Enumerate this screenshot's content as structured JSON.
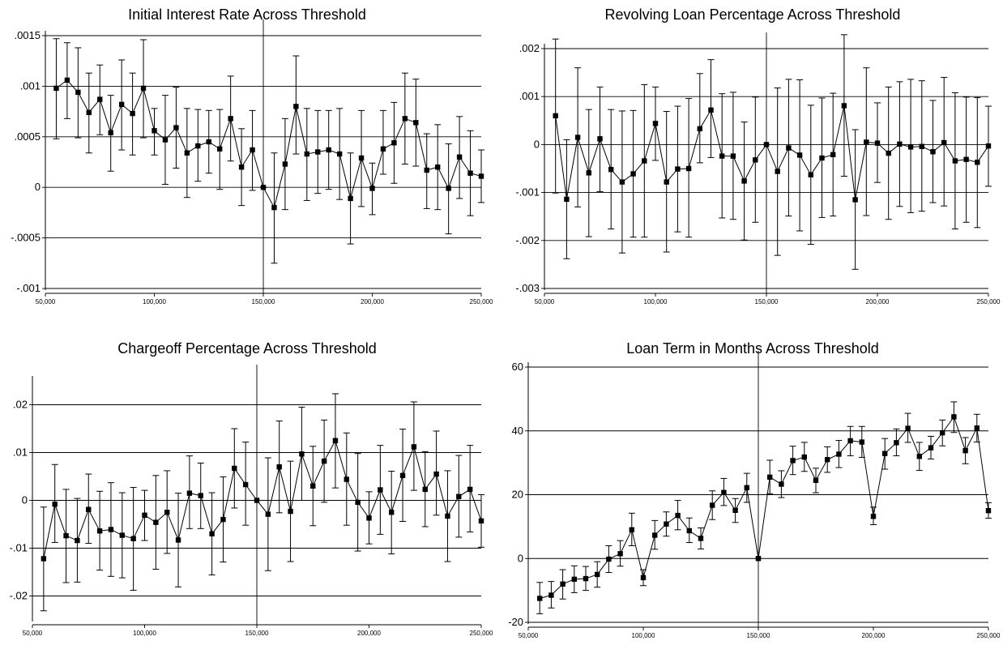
{
  "chart_data": [
    {
      "type": "scatter",
      "title": "Initial Interest Rate Across Threshold",
      "xlabel": "",
      "ylabel": "",
      "xlim": [
        50000,
        250000
      ],
      "ylim": [
        -0.001,
        0.0015
      ],
      "threshold": 150000,
      "yticks": [
        -0.001,
        -0.0005,
        0,
        0.0005,
        0.001,
        0.0015
      ],
      "ytick_labels": [
        "-.001",
        "-.0005",
        "0",
        ".0005",
        ".001",
        ".0015"
      ],
      "xticks": [
        50000,
        100000,
        150000,
        200000,
        250000
      ],
      "xtick_labels": [
        "50,000",
        "100,000",
        "150,000",
        "200,000",
        "250,000"
      ],
      "grid": "horizontal",
      "series": [
        {
          "x": [
            55000,
            60000,
            65000,
            70000,
            75000,
            80000,
            85000,
            90000,
            95000,
            100000,
            105000,
            110000,
            115000,
            120000,
            125000,
            130000,
            135000,
            140000,
            145000,
            150000,
            155000,
            160000,
            165000,
            170000,
            175000,
            180000,
            185000,
            190000,
            195000,
            200000,
            205000,
            210000,
            215000,
            220000,
            225000,
            230000,
            235000,
            240000,
            245000,
            250000
          ],
          "y": [
            0.00098,
            0.00106,
            0.00094,
            0.00074,
            0.00087,
            0.00054,
            0.00082,
            0.00073,
            0.00098,
            0.00056,
            0.00047,
            0.00059,
            0.00034,
            0.00041,
            0.00045,
            0.00038,
            0.00068,
            0.0002,
            0.00037,
            0,
            -0.0002,
            0.00023,
            0.0008,
            0.00033,
            0.00035,
            0.00037,
            0.00033,
            -0.00011,
            0.00029,
            -1e-05,
            0.00038,
            0.00044,
            0.00068,
            0.00064,
            0.00017,
            0.0002,
            -1e-05,
            0.0003,
            0.00014,
            0.00011
          ],
          "lo": [
            0.00048,
            0.00068,
            0.00049,
            0.00034,
            0.00052,
            0.00016,
            0.00037,
            0.00032,
            0.00049,
            0.00032,
            3e-05,
            0.00019,
            -0.0001,
            6e-05,
            0.00014,
            -2e-05,
            0.00026,
            -0.00018,
            -3e-05,
            0,
            -0.00075,
            -0.00022,
            0.00033,
            -0.00013,
            -6e-05,
            -2e-05,
            -0.00012,
            -0.00056,
            -0.00019,
            -0.00027,
            0.00013,
            4e-05,
            0.00023,
            0.00021,
            -0.00021,
            -0.00022,
            -0.00046,
            -0.00011,
            -0.00028,
            -0.00015
          ],
          "hi": [
            0.00147,
            0.00143,
            0.00138,
            0.00113,
            0.00121,
            0.00091,
            0.00126,
            0.00113,
            0.00146,
            0.00078,
            0.00091,
            0.00099,
            0.00078,
            0.00077,
            0.00076,
            0.00077,
            0.0011,
            0.00058,
            0.00076,
            0,
            0.00034,
            0.00068,
            0.0013,
            0.00078,
            0.00076,
            0.00076,
            0.00078,
            0.00034,
            0.00076,
            0.00024,
            0.00076,
            0.00084,
            0.00113,
            0.00107,
            0.00053,
            0.00062,
            0.00043,
            0.0007,
            0.00056,
            0.00037
          ]
        }
      ]
    },
    {
      "type": "scatter",
      "title": "Revolving Loan Percentage Across Threshold",
      "xlabel": "",
      "ylabel": "",
      "xlim": [
        50000,
        250000
      ],
      "ylim": [
        -0.003,
        0.002
      ],
      "threshold": 150000,
      "yticks": [
        -0.003,
        -0.002,
        -0.001,
        0,
        0.001,
        0.002
      ],
      "ytick_labels": [
        "-.003",
        "-.002",
        "-.001",
        "0",
        ".001",
        ".002"
      ],
      "xticks": [
        50000,
        100000,
        150000,
        200000,
        250000
      ],
      "xtick_labels": [
        "50,000",
        "100,000",
        "150,000",
        "200,000",
        "250,000"
      ],
      "grid": "horizontal",
      "series": [
        {
          "x": [
            55000,
            60000,
            65000,
            70000,
            75000,
            80000,
            85000,
            90000,
            95000,
            100000,
            105000,
            110000,
            115000,
            120000,
            125000,
            130000,
            135000,
            140000,
            145000,
            150000,
            155000,
            160000,
            165000,
            170000,
            175000,
            180000,
            185000,
            190000,
            195000,
            200000,
            205000,
            210000,
            215000,
            220000,
            225000,
            230000,
            235000,
            240000,
            245000,
            250000
          ],
          "y": [
            0.0006,
            -0.00114,
            0.00015,
            -0.00059,
            0.00012,
            -0.00052,
            -0.00078,
            -0.00061,
            -0.00034,
            0.00044,
            -0.00078,
            -0.00051,
            -0.0005,
            0.00033,
            0.00072,
            -0.00024,
            -0.00024,
            -0.00076,
            -0.00032,
            0,
            -0.00056,
            -7e-05,
            -0.00022,
            -0.00063,
            -0.00028,
            -0.00021,
            0.00081,
            -0.00115,
            5e-05,
            3e-05,
            -0.00018,
            1e-05,
            -5e-05,
            -4e-05,
            -0.00015,
            4e-05,
            -0.00034,
            -0.00031,
            -0.00037,
            -3e-05
          ],
          "lo": [
            -0.00101,
            -0.00238,
            -0.0013,
            -0.00192,
            -0.00098,
            -0.00176,
            -0.00226,
            -0.00193,
            -0.00193,
            -0.00033,
            -0.00224,
            -0.00182,
            -0.00193,
            -0.00038,
            -0.00027,
            -0.00153,
            -0.00156,
            -0.00199,
            -0.00162,
            0,
            -0.00231,
            -0.00149,
            -0.0018,
            -0.00208,
            -0.00152,
            -0.00149,
            -0.00066,
            -0.0026,
            -0.00148,
            -0.00079,
            -0.00156,
            -0.00129,
            -0.00142,
            -0.00139,
            -0.00121,
            -0.00128,
            -0.00176,
            -0.00162,
            -0.00173,
            -0.00087
          ],
          "hi": [
            0.0022,
            0.0001,
            0.0016,
            0.00073,
            0.0012,
            0.00073,
            0.0007,
            0.00071,
            0.00125,
            0.0012,
            0.00069,
            0.0008,
            0.00096,
            0.00148,
            0.00177,
            0.00106,
            0.00109,
            0.00047,
            0.00099,
            0,
            0.00118,
            0.00136,
            0.00135,
            0.00082,
            0.00097,
            0.00107,
            0.00229,
            0.00031,
            0.0016,
            0.00087,
            0.0012,
            0.00131,
            0.00136,
            0.00133,
            0.00092,
            0.0014,
            0.00108,
            0.00099,
            0.00098,
            0.0008
          ]
        }
      ]
    },
    {
      "type": "scatter",
      "title": "Chargeoff Percentage Across Threshold",
      "xlabel": "",
      "ylabel": "",
      "xlim": [
        50000,
        250000
      ],
      "ylim": [
        -0.025,
        0.025
      ],
      "threshold": 150000,
      "yticks": [
        -0.02,
        -0.01,
        0,
        0.01,
        0.02
      ],
      "ytick_labels": [
        "-.02",
        "-.01",
        "0",
        ".01",
        ".02"
      ],
      "xticks": [
        50000,
        100000,
        150000,
        200000,
        250000
      ],
      "xtick_labels": [
        "50,000",
        "100,000",
        "150,000",
        "200,000",
        "250,000"
      ],
      "grid": "horizontal",
      "series": [
        {
          "x": [
            55000,
            60000,
            65000,
            70000,
            75000,
            80000,
            85000,
            90000,
            95000,
            100000,
            105000,
            110000,
            115000,
            120000,
            125000,
            130000,
            135000,
            140000,
            145000,
            150000,
            155000,
            160000,
            165000,
            170000,
            175000,
            180000,
            185000,
            190000,
            195000,
            200000,
            205000,
            210000,
            215000,
            220000,
            225000,
            230000,
            235000,
            240000,
            245000,
            250000
          ],
          "y": [
            -0.0122,
            -0.0008,
            -0.0074,
            -0.0084,
            -0.0019,
            -0.0064,
            -0.0061,
            -0.0073,
            -0.008,
            -0.0031,
            -0.0046,
            -0.0025,
            -0.0083,
            0.0015,
            0.001,
            -0.007,
            -0.004,
            0.0067,
            0.0033,
            0,
            -0.0029,
            0.007,
            -0.0023,
            0.0097,
            0.003,
            0.0082,
            0.0125,
            0.0044,
            -0.0004,
            -0.0037,
            0.0022,
            -0.0025,
            0.0052,
            0.0112,
            0.0023,
            0.0055,
            -0.0033,
            0.0008,
            0.0023,
            -0.0043
          ],
          "lo": [
            -0.0231,
            -0.0088,
            -0.0172,
            -0.0171,
            -0.009,
            -0.0146,
            -0.0159,
            -0.0162,
            -0.0188,
            -0.0084,
            -0.0144,
            -0.0111,
            -0.0181,
            -0.0059,
            -0.0059,
            -0.0156,
            -0.0129,
            -0.0016,
            -0.0052,
            0,
            -0.0147,
            -0.0026,
            -0.0128,
            0,
            -0.0053,
            -0.0004,
            0.0026,
            -0.0052,
            -0.0106,
            -0.0091,
            -0.0071,
            -0.0112,
            -0.0044,
            0.0021,
            -0.0055,
            -0.0031,
            -0.0128,
            -0.0077,
            -0.0066,
            -0.0098
          ],
          "hi": [
            -0.0014,
            0.0075,
            0.0023,
            0.0004,
            0.0055,
            0.0019,
            0.0037,
            0.0016,
            0.0027,
            0.0021,
            0.0052,
            0.0062,
            0.0015,
            0.0093,
            0.0078,
            0.0016,
            0.0049,
            0.015,
            0.0122,
            0,
            0.0089,
            0.0166,
            0.0082,
            0.0195,
            0.0113,
            0.0168,
            0.0223,
            0.0141,
            0.0098,
            0.0018,
            0.0115,
            0.0061,
            0.0149,
            0.0206,
            0.0102,
            0.0145,
            0.0062,
            0.0094,
            0.0115,
            0.0012
          ]
        }
      ]
    },
    {
      "type": "scatter",
      "title": "Loan Term in Months Across Threshold",
      "xlabel": "",
      "ylabel": "",
      "xlim": [
        50000,
        250000
      ],
      "ylim": [
        -20,
        60
      ],
      "threshold": 150000,
      "yticks": [
        -20,
        0,
        20,
        40,
        60
      ],
      "ytick_labels": [
        "-20",
        "0",
        "20",
        "40",
        "60"
      ],
      "xticks": [
        50000,
        100000,
        150000,
        200000,
        250000
      ],
      "xtick_labels": [
        "50,000",
        "100,000",
        "150,000",
        "200,000",
        "250,000"
      ],
      "grid": "horizontal",
      "series": [
        {
          "x": [
            55000,
            60000,
            65000,
            70000,
            75000,
            80000,
            85000,
            90000,
            95000,
            100000,
            105000,
            110000,
            115000,
            120000,
            125000,
            130000,
            135000,
            140000,
            145000,
            150000,
            155000,
            160000,
            165000,
            170000,
            175000,
            180000,
            185000,
            190000,
            195000,
            200000,
            205000,
            210000,
            215000,
            220000,
            225000,
            230000,
            235000,
            240000,
            245000,
            250000
          ],
          "y": [
            -12.5,
            -11.5,
            -8,
            -6.5,
            -6.3,
            -5,
            -0.2,
            1.5,
            9,
            -6,
            7.3,
            10.8,
            13.5,
            8.7,
            6.3,
            16.7,
            20.7,
            15.1,
            22.2,
            0,
            25.5,
            23.3,
            30.7,
            31.8,
            24.5,
            31,
            32.7,
            36.9,
            36.5,
            13.2,
            32.9,
            36.3,
            40.8,
            32,
            34.7,
            39.4,
            44.4,
            33.8,
            40.9,
            15
          ],
          "lo": [
            -17.3,
            -15.5,
            -12.7,
            -10.7,
            -10,
            -9,
            -4.4,
            -2.4,
            4,
            -8.5,
            2.9,
            7,
            9,
            5,
            3,
            12.2,
            16.6,
            11.3,
            17.6,
            0,
            20.3,
            19.1,
            26.3,
            27.3,
            20.6,
            27,
            28.5,
            32.2,
            31.7,
            10.6,
            28,
            32.2,
            36.4,
            27.6,
            31.2,
            35.3,
            39.5,
            29.7,
            36.5,
            12.6
          ],
          "hi": [
            -7.5,
            -7.2,
            -3.5,
            -2.3,
            -2.5,
            -1,
            4,
            5.6,
            14.2,
            -3.5,
            11.9,
            14.6,
            18.2,
            12.7,
            9.6,
            21.2,
            25.1,
            18.8,
            26.7,
            0,
            30.8,
            27.5,
            35.2,
            36.4,
            28.3,
            35,
            37,
            41.4,
            41.4,
            16.1,
            37.6,
            40.6,
            45.5,
            36.4,
            38.3,
            43.4,
            49.1,
            37.9,
            45.2,
            17.5
          ]
        }
      ]
    }
  ]
}
